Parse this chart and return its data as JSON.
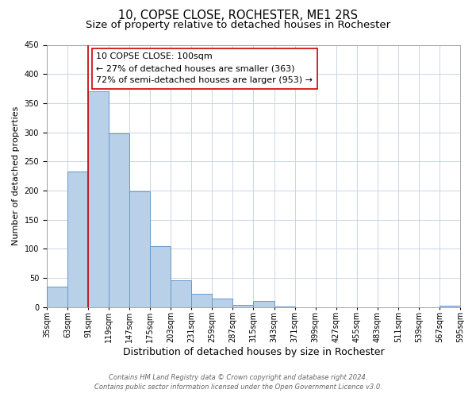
{
  "title": "10, COPSE CLOSE, ROCHESTER, ME1 2RS",
  "subtitle": "Size of property relative to detached houses in Rochester",
  "xlabel": "Distribution of detached houses by size in Rochester",
  "ylabel": "Number of detached properties",
  "bar_values": [
    35,
    233,
    370,
    298,
    199,
    105,
    46,
    22,
    15,
    4,
    10,
    1,
    0,
    0,
    0,
    0,
    0,
    0,
    0,
    2
  ],
  "bar_labels": [
    "35sqm",
    "63sqm",
    "91sqm",
    "119sqm",
    "147sqm",
    "175sqm",
    "203sqm",
    "231sqm",
    "259sqm",
    "287sqm",
    "315sqm",
    "343sqm",
    "371sqm",
    "399sqm",
    "427sqm",
    "455sqm",
    "483sqm",
    "511sqm",
    "539sqm",
    "567sqm",
    "595sqm"
  ],
  "bar_color": "#b8d0e8",
  "bar_edge_color": "#6699cc",
  "bar_edge_width": 0.7,
  "vline_x": 2,
  "vline_color": "#cc0000",
  "vline_linewidth": 1.2,
  "ylim": [
    0,
    450
  ],
  "yticks": [
    0,
    50,
    100,
    150,
    200,
    250,
    300,
    350,
    400,
    450
  ],
  "annotation_title": "10 COPSE CLOSE: 100sqm",
  "annotation_line1": "← 27% of detached houses are smaller (363)",
  "annotation_line2": "72% of semi-detached houses are larger (953) →",
  "footer_line1": "Contains HM Land Registry data © Crown copyright and database right 2024.",
  "footer_line2": "Contains public sector information licensed under the Open Government Licence v3.0.",
  "background_color": "#ffffff",
  "grid_color": "#c0d0e0",
  "title_fontsize": 10.5,
  "subtitle_fontsize": 9.5,
  "xlabel_fontsize": 9,
  "ylabel_fontsize": 8,
  "tick_fontsize": 7,
  "annotation_fontsize": 8,
  "footer_fontsize": 6
}
